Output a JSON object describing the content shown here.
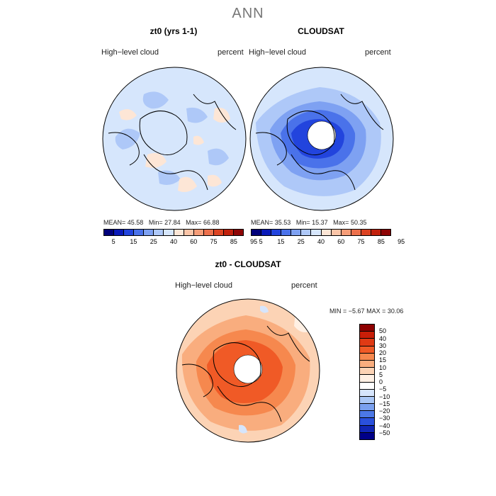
{
  "main_title": "ANN",
  "panels": [
    {
      "title": "zt0 (yrs 1-1)",
      "left_label": "High−level cloud",
      "right_label": "percent",
      "mean_label": "MEAN=",
      "mean": "45.58",
      "min_label": "Min=",
      "min": "27.84",
      "max_label": "Max=",
      "max": "66.88"
    },
    {
      "title": "CLOUDSAT",
      "left_label": "High−level cloud",
      "right_label": "percent",
      "mean_label": "MEAN=",
      "mean": "35.53",
      "min_label": "Min=",
      "min": "15.37",
      "max_label": "Max=",
      "max": "50.35"
    }
  ],
  "diff_panel": {
    "title": "zt0 - CLOUDSAT",
    "left_label": "High−level cloud",
    "right_label": "percent",
    "min_label": "MIN =",
    "min": "−5.67",
    "max_label": "MAX =",
    "max": "30.06"
  },
  "abs_colorbar": {
    "colors": [
      "#00007a",
      "#0a1ab8",
      "#2244dd",
      "#4a72ea",
      "#7ea1f2",
      "#aec8f8",
      "#d6e6fc",
      "#fde6d6",
      "#fbc5a8",
      "#f69d78",
      "#ec704c",
      "#dc4322",
      "#c1200c",
      "#8e0505"
    ],
    "ticks": [
      "5",
      "15",
      "25",
      "40",
      "60",
      "75",
      "85",
      "95"
    ]
  },
  "diff_colorbar": {
    "colors": [
      "#8e0000",
      "#c81e08",
      "#e03a14",
      "#f05a26",
      "#f6884e",
      "#f9ad7e",
      "#fcd3b5",
      "#fff0e4",
      "#ffffff",
      "#d6e5fc",
      "#aac7f6",
      "#7aa0ef",
      "#4c78e6",
      "#2a50dc",
      "#1025b4",
      "#000088"
    ],
    "ticks": [
      "50",
      "40",
      "30",
      "20",
      "15",
      "10",
      "5",
      "0",
      "−5",
      "−10",
      "−15",
      "−20",
      "−30",
      "−40",
      "−50"
    ]
  }
}
